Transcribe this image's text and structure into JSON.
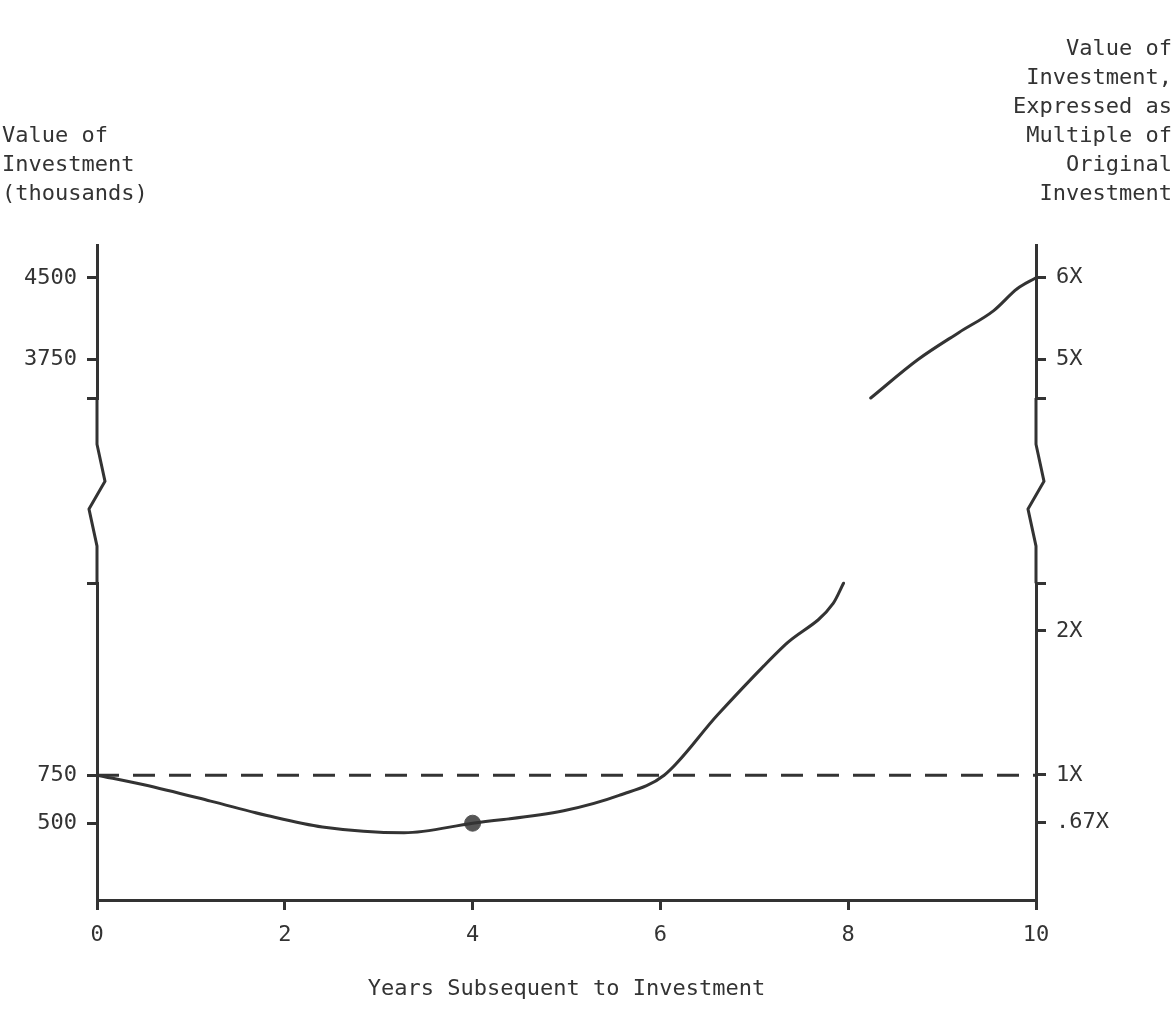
{
  "chart_data": [
    {
      "type": "line",
      "ylabel": "Value of\nInvestment\n(thousands)",
      "y2label": "Value of\nInvestment,\nExpressed as\nMultiple of\nOriginal\nInvestment",
      "xlim": [
        0,
        10
      ],
      "xticks": [
        0,
        2,
        4,
        6,
        8,
        10
      ],
      "tick_labels": "y",
      "ylim": [
        3400,
        4800
      ],
      "yticks": [
        {
          "value": 3400,
          "label": null
        },
        3750,
        4500
      ],
      "y2lim": [
        4.53,
        6.4
      ],
      "y2ticks": [
        {
          "value": 4.53,
          "label": null
        },
        {
          "value": 5,
          "label": "5X"
        },
        {
          "value": 6,
          "label": "6X"
        }
      ],
      "grid": false,
      "legend": false,
      "series": [
        {
          "type": "line",
          "color": "#333333",
          "marker": "none",
          "line_style": "solid",
          "x": [
            8.24,
            8.74,
            9.18,
            9.55,
            9.8,
            10
          ],
          "values": [
            3400,
            3750,
            4000,
            4200,
            4400,
            4500
          ]
        }
      ]
    },
    {
      "type": "line",
      "xlabel": "Years Subsequent to Investment",
      "xlim": [
        0,
        10
      ],
      "xticks": [
        0,
        2,
        4,
        6,
        8,
        10
      ],
      "ylim": [
        100,
        1750
      ],
      "yticks": [
        500,
        750,
        {
          "value": 1750,
          "label": null
        }
      ],
      "y2lim": [
        0.133,
        2.33
      ],
      "y2ticks": [
        {
          "value": 0.67,
          "label": ".67X"
        },
        {
          "value": 1,
          "label": "1X"
        },
        {
          "value": 2,
          "label": "2X"
        },
        {
          "value": 2.33,
          "label": null
        }
      ],
      "grid": false,
      "legend": false,
      "ref_lines": [
        {
          "axis": "y",
          "value": 750,
          "line_style": "dashed",
          "color": "#333333"
        }
      ],
      "series": [
        {
          "type": "line",
          "color": "#333333",
          "marker": "none",
          "line_style": "solid",
          "x": [
            0,
            0.5,
            1.21,
            1.81,
            2.4,
            3.27,
            4,
            4.97,
            5.56,
            6.04,
            6.61,
            7.33,
            7.84,
            7.95
          ],
          "values": [
            750,
            700,
            615,
            540,
            480,
            450,
            500,
            565,
            645,
            750,
            1065,
            1430,
            1645,
            1750
          ]
        },
        {
          "type": "scatter",
          "color": "#555555",
          "marker": "circle",
          "x": [
            4
          ],
          "values": [
            500
          ]
        }
      ]
    }
  ]
}
